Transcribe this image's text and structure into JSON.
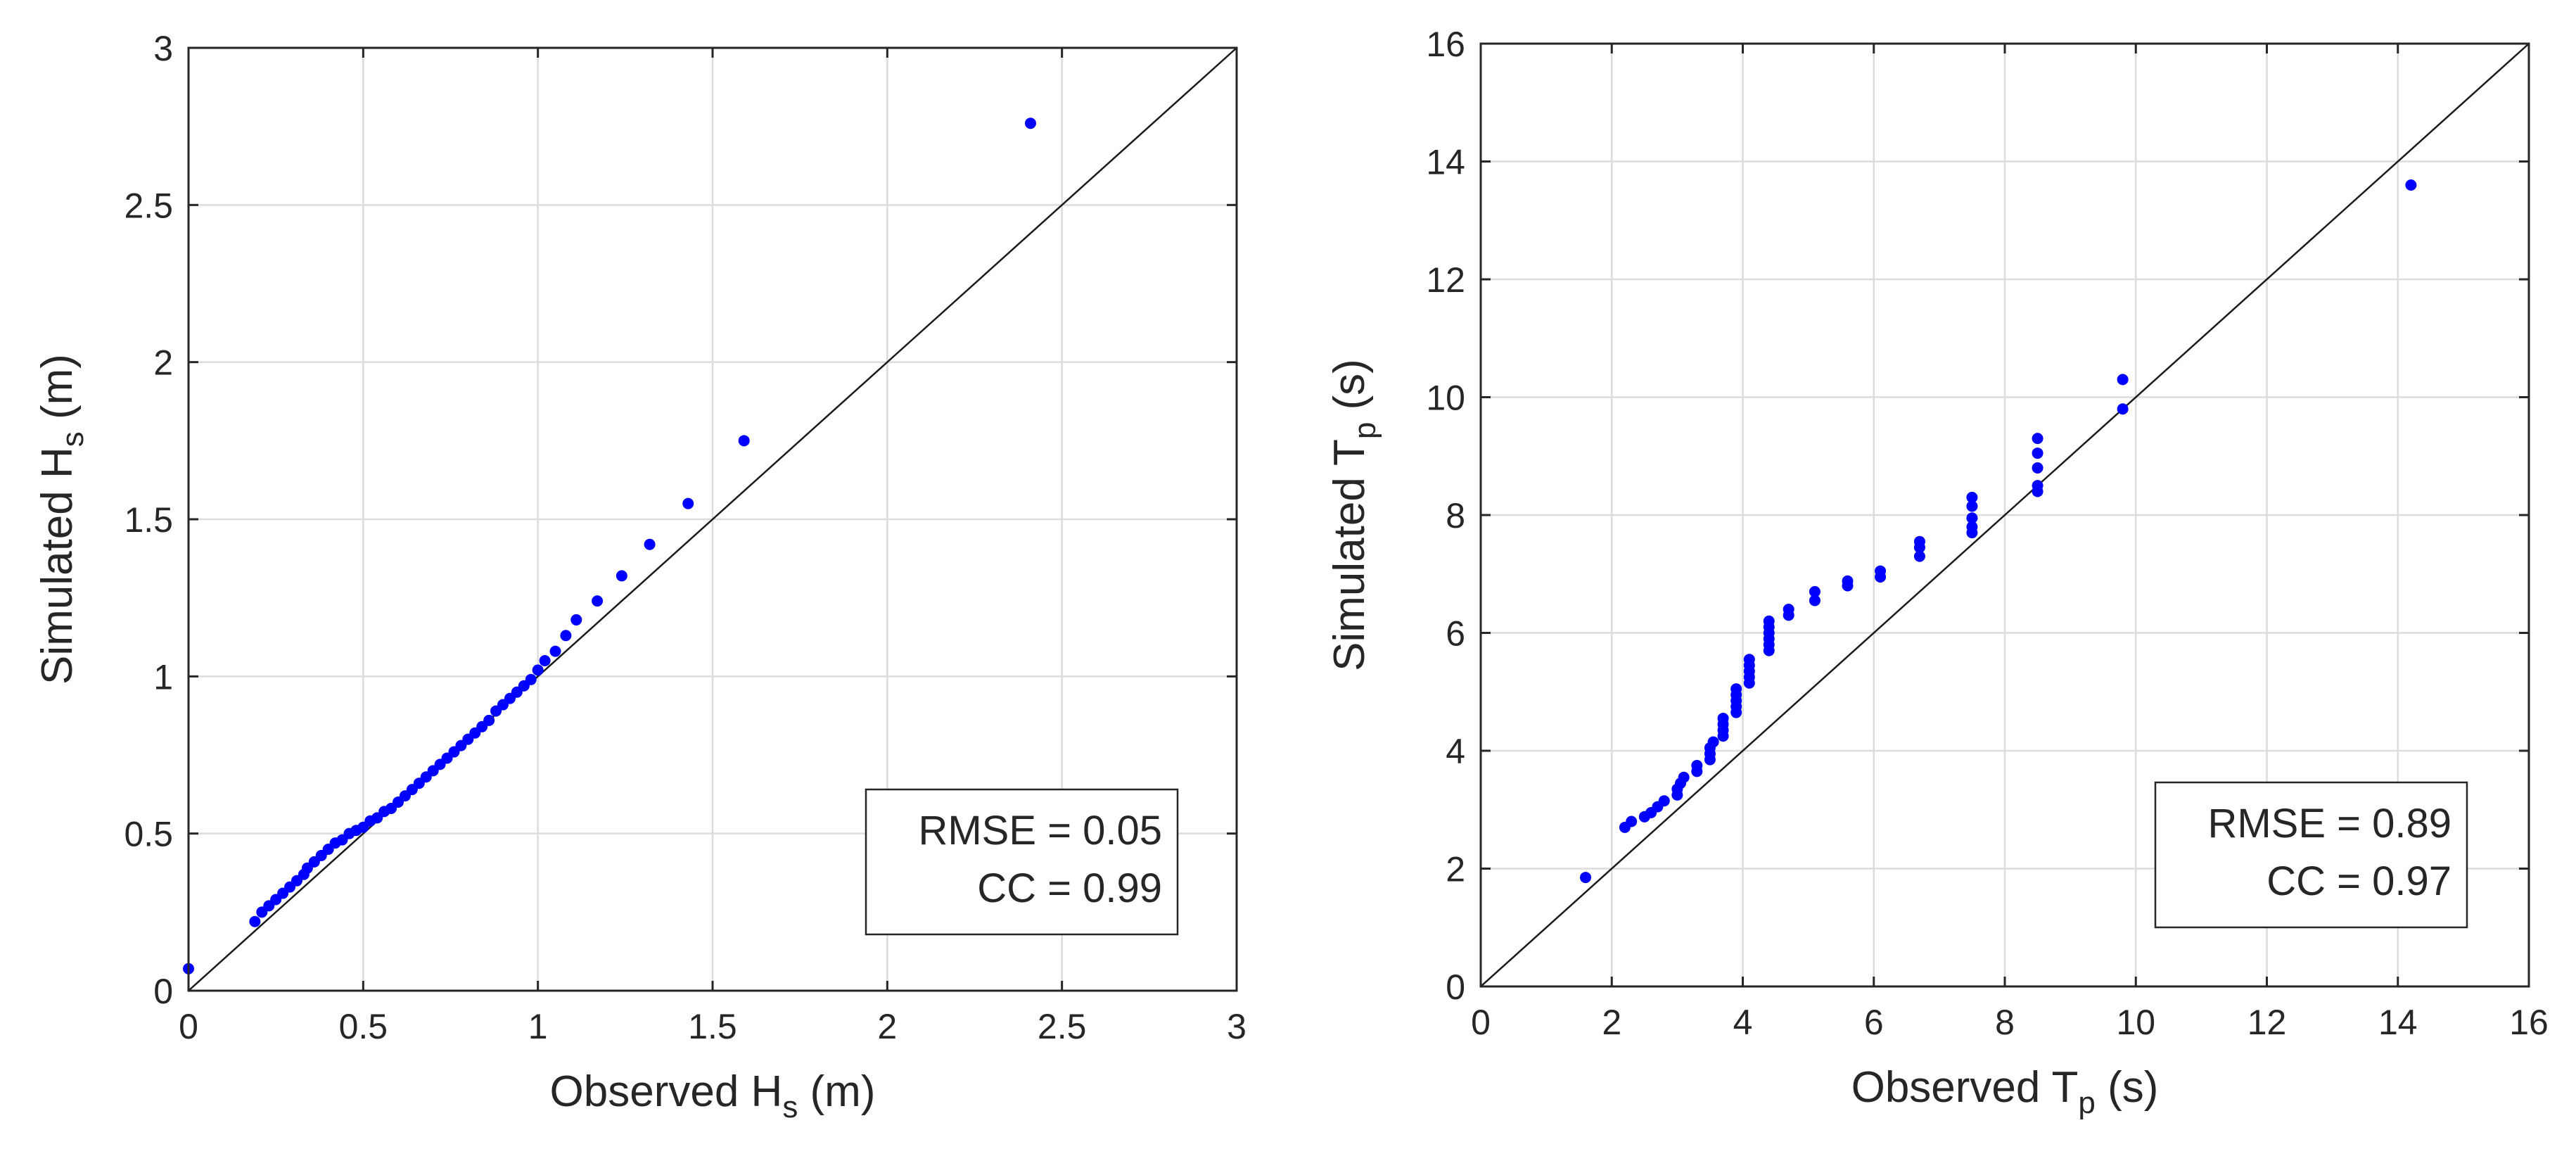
{
  "chart_data": [
    {
      "type": "scatter",
      "id": "hs",
      "title": "",
      "xlabel": {
        "main": "Observed H",
        "sub": "s",
        "unit": " (m)"
      },
      "ylabel": {
        "main": "Simulated H",
        "sub": "s",
        "unit": " (m)"
      },
      "xlim": [
        0,
        3
      ],
      "ylim": [
        0,
        3
      ],
      "xticks": [
        0,
        0.5,
        1,
        1.5,
        2,
        2.5,
        3
      ],
      "yticks": [
        0,
        0.5,
        1,
        1.5,
        2,
        2.5,
        3
      ],
      "xtick_labels": [
        "0",
        "0.5",
        "1",
        "1.5",
        "2",
        "2.5",
        "3"
      ],
      "ytick_labels": [
        "0",
        "0.5",
        "1",
        "1.5",
        "2",
        "2.5",
        "3"
      ],
      "grid": true,
      "reference_line": "1:1",
      "stats": {
        "rmse": "RMSE = 0.05",
        "cc": "CC = 0.99"
      },
      "stats_position": "bottom-right",
      "point_color": "#0000ff",
      "points": [
        [
          0.0,
          0.07
        ],
        [
          0.19,
          0.22
        ],
        [
          0.21,
          0.25
        ],
        [
          0.23,
          0.27
        ],
        [
          0.25,
          0.29
        ],
        [
          0.27,
          0.31
        ],
        [
          0.29,
          0.33
        ],
        [
          0.31,
          0.35
        ],
        [
          0.33,
          0.37
        ],
        [
          0.34,
          0.39
        ],
        [
          0.36,
          0.41
        ],
        [
          0.38,
          0.43
        ],
        [
          0.4,
          0.45
        ],
        [
          0.42,
          0.47
        ],
        [
          0.44,
          0.48
        ],
        [
          0.46,
          0.5
        ],
        [
          0.48,
          0.51
        ],
        [
          0.5,
          0.52
        ],
        [
          0.52,
          0.54
        ],
        [
          0.54,
          0.55
        ],
        [
          0.56,
          0.57
        ],
        [
          0.58,
          0.58
        ],
        [
          0.6,
          0.6
        ],
        [
          0.62,
          0.62
        ],
        [
          0.64,
          0.64
        ],
        [
          0.66,
          0.66
        ],
        [
          0.68,
          0.68
        ],
        [
          0.7,
          0.7
        ],
        [
          0.72,
          0.72
        ],
        [
          0.74,
          0.74
        ],
        [
          0.76,
          0.76
        ],
        [
          0.78,
          0.78
        ],
        [
          0.8,
          0.8
        ],
        [
          0.82,
          0.82
        ],
        [
          0.84,
          0.84
        ],
        [
          0.86,
          0.86
        ],
        [
          0.88,
          0.89
        ],
        [
          0.9,
          0.91
        ],
        [
          0.92,
          0.93
        ],
        [
          0.94,
          0.95
        ],
        [
          0.96,
          0.97
        ],
        [
          0.98,
          0.99
        ],
        [
          1.0,
          1.02
        ],
        [
          1.02,
          1.05
        ],
        [
          1.05,
          1.08
        ],
        [
          1.08,
          1.13
        ],
        [
          1.11,
          1.18
        ],
        [
          1.17,
          1.24
        ],
        [
          1.24,
          1.32
        ],
        [
          1.32,
          1.42
        ],
        [
          1.43,
          1.55
        ],
        [
          1.59,
          1.75
        ],
        [
          2.41,
          2.76
        ]
      ]
    },
    {
      "type": "scatter",
      "id": "tp",
      "title": "",
      "xlabel": {
        "main": "Observed T",
        "sub": "p",
        "unit": " (s)"
      },
      "ylabel": {
        "main": "Simulated T",
        "sub": "p",
        "unit": " (s)"
      },
      "xlim": [
        0,
        16
      ],
      "ylim": [
        0,
        16
      ],
      "xticks": [
        0,
        2,
        4,
        6,
        8,
        10,
        12,
        14,
        16
      ],
      "yticks": [
        0,
        2,
        4,
        6,
        8,
        10,
        12,
        14,
        16
      ],
      "xtick_labels": [
        "0",
        "2",
        "4",
        "6",
        "8",
        "10",
        "12",
        "14",
        "16"
      ],
      "ytick_labels": [
        "0",
        "2",
        "4",
        "6",
        "8",
        "10",
        "12",
        "14",
        "16"
      ],
      "grid": true,
      "reference_line": "1:1",
      "stats": {
        "rmse": "RMSE = 0.89",
        "cc": "CC = 0.97"
      },
      "stats_position": "bottom-right",
      "point_color": "#0000ff",
      "points": [
        [
          1.6,
          1.85
        ],
        [
          2.2,
          2.7
        ],
        [
          2.3,
          2.8
        ],
        [
          2.5,
          2.88
        ],
        [
          2.6,
          2.95
        ],
        [
          2.7,
          3.05
        ],
        [
          2.8,
          3.15
        ],
        [
          3.0,
          3.25
        ],
        [
          3.0,
          3.35
        ],
        [
          3.05,
          3.45
        ],
        [
          3.1,
          3.55
        ],
        [
          3.3,
          3.65
        ],
        [
          3.3,
          3.75
        ],
        [
          3.5,
          3.85
        ],
        [
          3.5,
          3.95
        ],
        [
          3.5,
          4.05
        ],
        [
          3.55,
          4.15
        ],
        [
          3.7,
          4.25
        ],
        [
          3.7,
          4.35
        ],
        [
          3.7,
          4.45
        ],
        [
          3.7,
          4.55
        ],
        [
          3.9,
          4.65
        ],
        [
          3.9,
          4.75
        ],
        [
          3.9,
          4.85
        ],
        [
          3.9,
          4.95
        ],
        [
          3.9,
          5.05
        ],
        [
          4.1,
          5.15
        ],
        [
          4.1,
          5.25
        ],
        [
          4.1,
          5.35
        ],
        [
          4.1,
          5.45
        ],
        [
          4.1,
          5.55
        ],
        [
          4.4,
          5.7
        ],
        [
          4.4,
          5.8
        ],
        [
          4.4,
          5.9
        ],
        [
          4.4,
          6.0
        ],
        [
          4.4,
          6.1
        ],
        [
          4.4,
          6.2
        ],
        [
          4.7,
          6.3
        ],
        [
          4.7,
          6.4
        ],
        [
          5.1,
          6.55
        ],
        [
          5.1,
          6.7
        ],
        [
          5.6,
          6.8
        ],
        [
          5.6,
          6.88
        ],
        [
          6.1,
          6.95
        ],
        [
          6.1,
          7.05
        ],
        [
          6.7,
          7.3
        ],
        [
          6.7,
          7.45
        ],
        [
          6.7,
          7.55
        ],
        [
          7.5,
          7.7
        ],
        [
          7.5,
          7.8
        ],
        [
          7.5,
          7.95
        ],
        [
          7.5,
          8.15
        ],
        [
          7.5,
          8.3
        ],
        [
          8.5,
          8.4
        ],
        [
          8.5,
          8.5
        ],
        [
          8.5,
          8.8
        ],
        [
          8.5,
          9.05
        ],
        [
          8.5,
          9.3
        ],
        [
          9.8,
          9.8
        ],
        [
          9.8,
          10.3
        ],
        [
          14.2,
          13.6
        ]
      ]
    }
  ]
}
